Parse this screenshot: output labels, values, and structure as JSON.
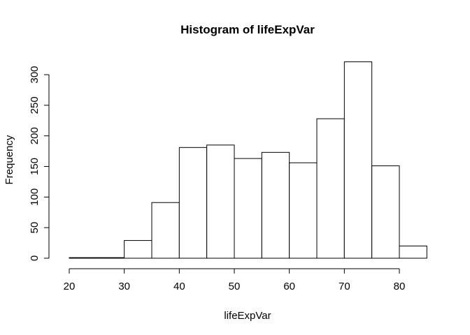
{
  "chart_data": {
    "type": "bar",
    "title": "Histogram of lifeExpVar",
    "xlabel": "lifeExpVar",
    "ylabel": "Frequency",
    "bins": [
      {
        "start": 20,
        "end": 25,
        "count": 1
      },
      {
        "start": 25,
        "end": 30,
        "count": 1
      },
      {
        "start": 30,
        "end": 35,
        "count": 29
      },
      {
        "start": 35,
        "end": 40,
        "count": 91
      },
      {
        "start": 40,
        "end": 45,
        "count": 181
      },
      {
        "start": 45,
        "end": 50,
        "count": 185
      },
      {
        "start": 50,
        "end": 55,
        "count": 163
      },
      {
        "start": 55,
        "end": 60,
        "count": 173
      },
      {
        "start": 60,
        "end": 65,
        "count": 156
      },
      {
        "start": 65,
        "end": 70,
        "count": 228
      },
      {
        "start": 70,
        "end": 75,
        "count": 321
      },
      {
        "start": 75,
        "end": 80,
        "count": 151
      },
      {
        "start": 80,
        "end": 85,
        "count": 20
      }
    ],
    "xlim": [
      20,
      85
    ],
    "ylim": [
      0,
      321
    ],
    "x_ticks": [
      "20",
      "30",
      "40",
      "50",
      "60",
      "70",
      "80"
    ],
    "y_ticks": [
      "0",
      "50",
      "100",
      "150",
      "200",
      "250",
      "300"
    ],
    "grid": false,
    "legend": "none"
  }
}
